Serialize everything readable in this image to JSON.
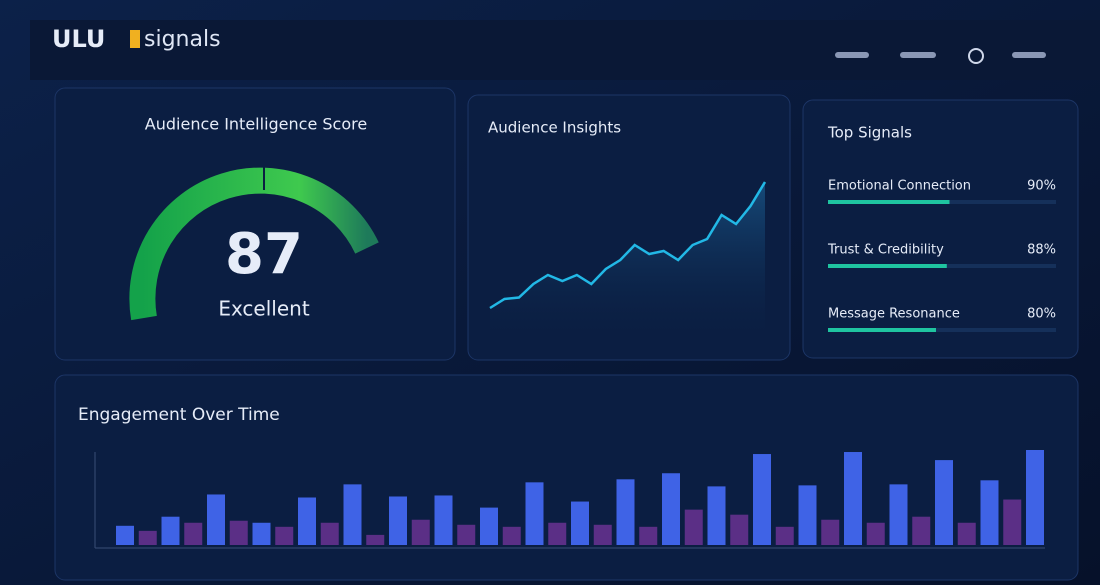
{
  "header": {
    "brand_a": "ULU",
    "brand_b": "signals"
  },
  "score": {
    "title": "Audience Intelligence Score",
    "value": 87,
    "label": "Excellent"
  },
  "insights": {
    "title": "Audience Insights",
    "values": [
      8,
      14,
      15,
      24,
      30,
      26,
      30,
      24,
      34,
      40,
      50,
      44,
      46,
      40,
      50,
      54,
      70,
      64,
      76,
      92
    ]
  },
  "signals": {
    "title": "Top Signals",
    "categories": [
      "Emotional Connection",
      "Trust & Credibility",
      "Message Resonance"
    ],
    "values": [
      90,
      88,
      80
    ],
    "value_labels": [
      "90%",
      "88%",
      "80%"
    ]
  },
  "engagement": {
    "title": "Engagement Over Time",
    "series": [
      {
        "color": "#3f63e6",
        "values": [
          19,
          28,
          50,
          22,
          47,
          60,
          48,
          49,
          37,
          62,
          43,
          65,
          71,
          58,
          90,
          59,
          92,
          60,
          84,
          64,
          94
        ]
      },
      {
        "color": "#5b2f86",
        "values": [
          14,
          22,
          24,
          18,
          22,
          10,
          25,
          20,
          18,
          22,
          20,
          18,
          35,
          30,
          18,
          25,
          22,
          28,
          22,
          45
        ]
      }
    ]
  }
}
